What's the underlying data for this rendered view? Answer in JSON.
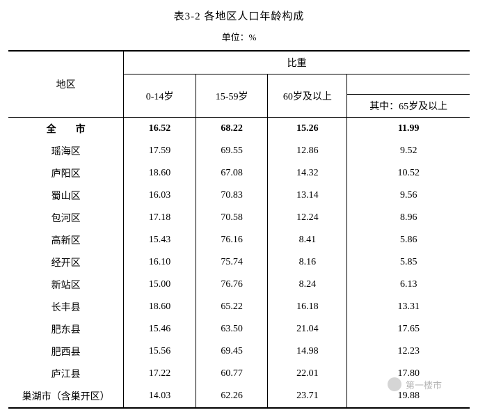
{
  "title": "表3-2  各地区人口年龄构成",
  "unit": "单位：%",
  "header": {
    "region": "地区",
    "group": "比重",
    "col0": "0-14岁",
    "col1": "15-59岁",
    "col2": "60岁及以上",
    "col3": "其中：65岁及以上"
  },
  "rows": [
    {
      "region": "全市",
      "spaced": true,
      "bold": true,
      "v": [
        "16.52",
        "68.22",
        "15.26",
        "11.99"
      ]
    },
    {
      "region": "瑶海区",
      "v": [
        "17.59",
        "69.55",
        "12.86",
        "9.52"
      ]
    },
    {
      "region": "庐阳区",
      "v": [
        "18.60",
        "67.08",
        "14.32",
        "10.52"
      ]
    },
    {
      "region": "蜀山区",
      "v": [
        "16.03",
        "70.83",
        "13.14",
        "9.56"
      ]
    },
    {
      "region": "包河区",
      "v": [
        "17.18",
        "70.58",
        "12.24",
        "8.96"
      ]
    },
    {
      "region": "高新区",
      "v": [
        "15.43",
        "76.16",
        "8.41",
        "5.86"
      ]
    },
    {
      "region": "经开区",
      "v": [
        "16.10",
        "75.74",
        "8.16",
        "5.85"
      ]
    },
    {
      "region": "新站区",
      "v": [
        "15.00",
        "76.76",
        "8.24",
        "6.13"
      ]
    },
    {
      "region": "长丰县",
      "v": [
        "18.60",
        "65.22",
        "16.18",
        "13.31"
      ]
    },
    {
      "region": "肥东县",
      "v": [
        "15.46",
        "63.50",
        "21.04",
        "17.65"
      ]
    },
    {
      "region": "肥西县",
      "v": [
        "15.56",
        "69.45",
        "14.98",
        "12.23"
      ]
    },
    {
      "region": "庐江县",
      "v": [
        "17.22",
        "60.77",
        "22.01",
        "17.80"
      ]
    },
    {
      "region": "巢湖市（含巢开区）",
      "v": [
        "14.03",
        "62.26",
        "23.71",
        "19.88"
      ]
    }
  ],
  "watermark": "第一楼市",
  "colors": {
    "text": "#000000",
    "background": "#ffffff",
    "border": "#000000",
    "watermark": "rgba(120,120,120,0.55)"
  }
}
